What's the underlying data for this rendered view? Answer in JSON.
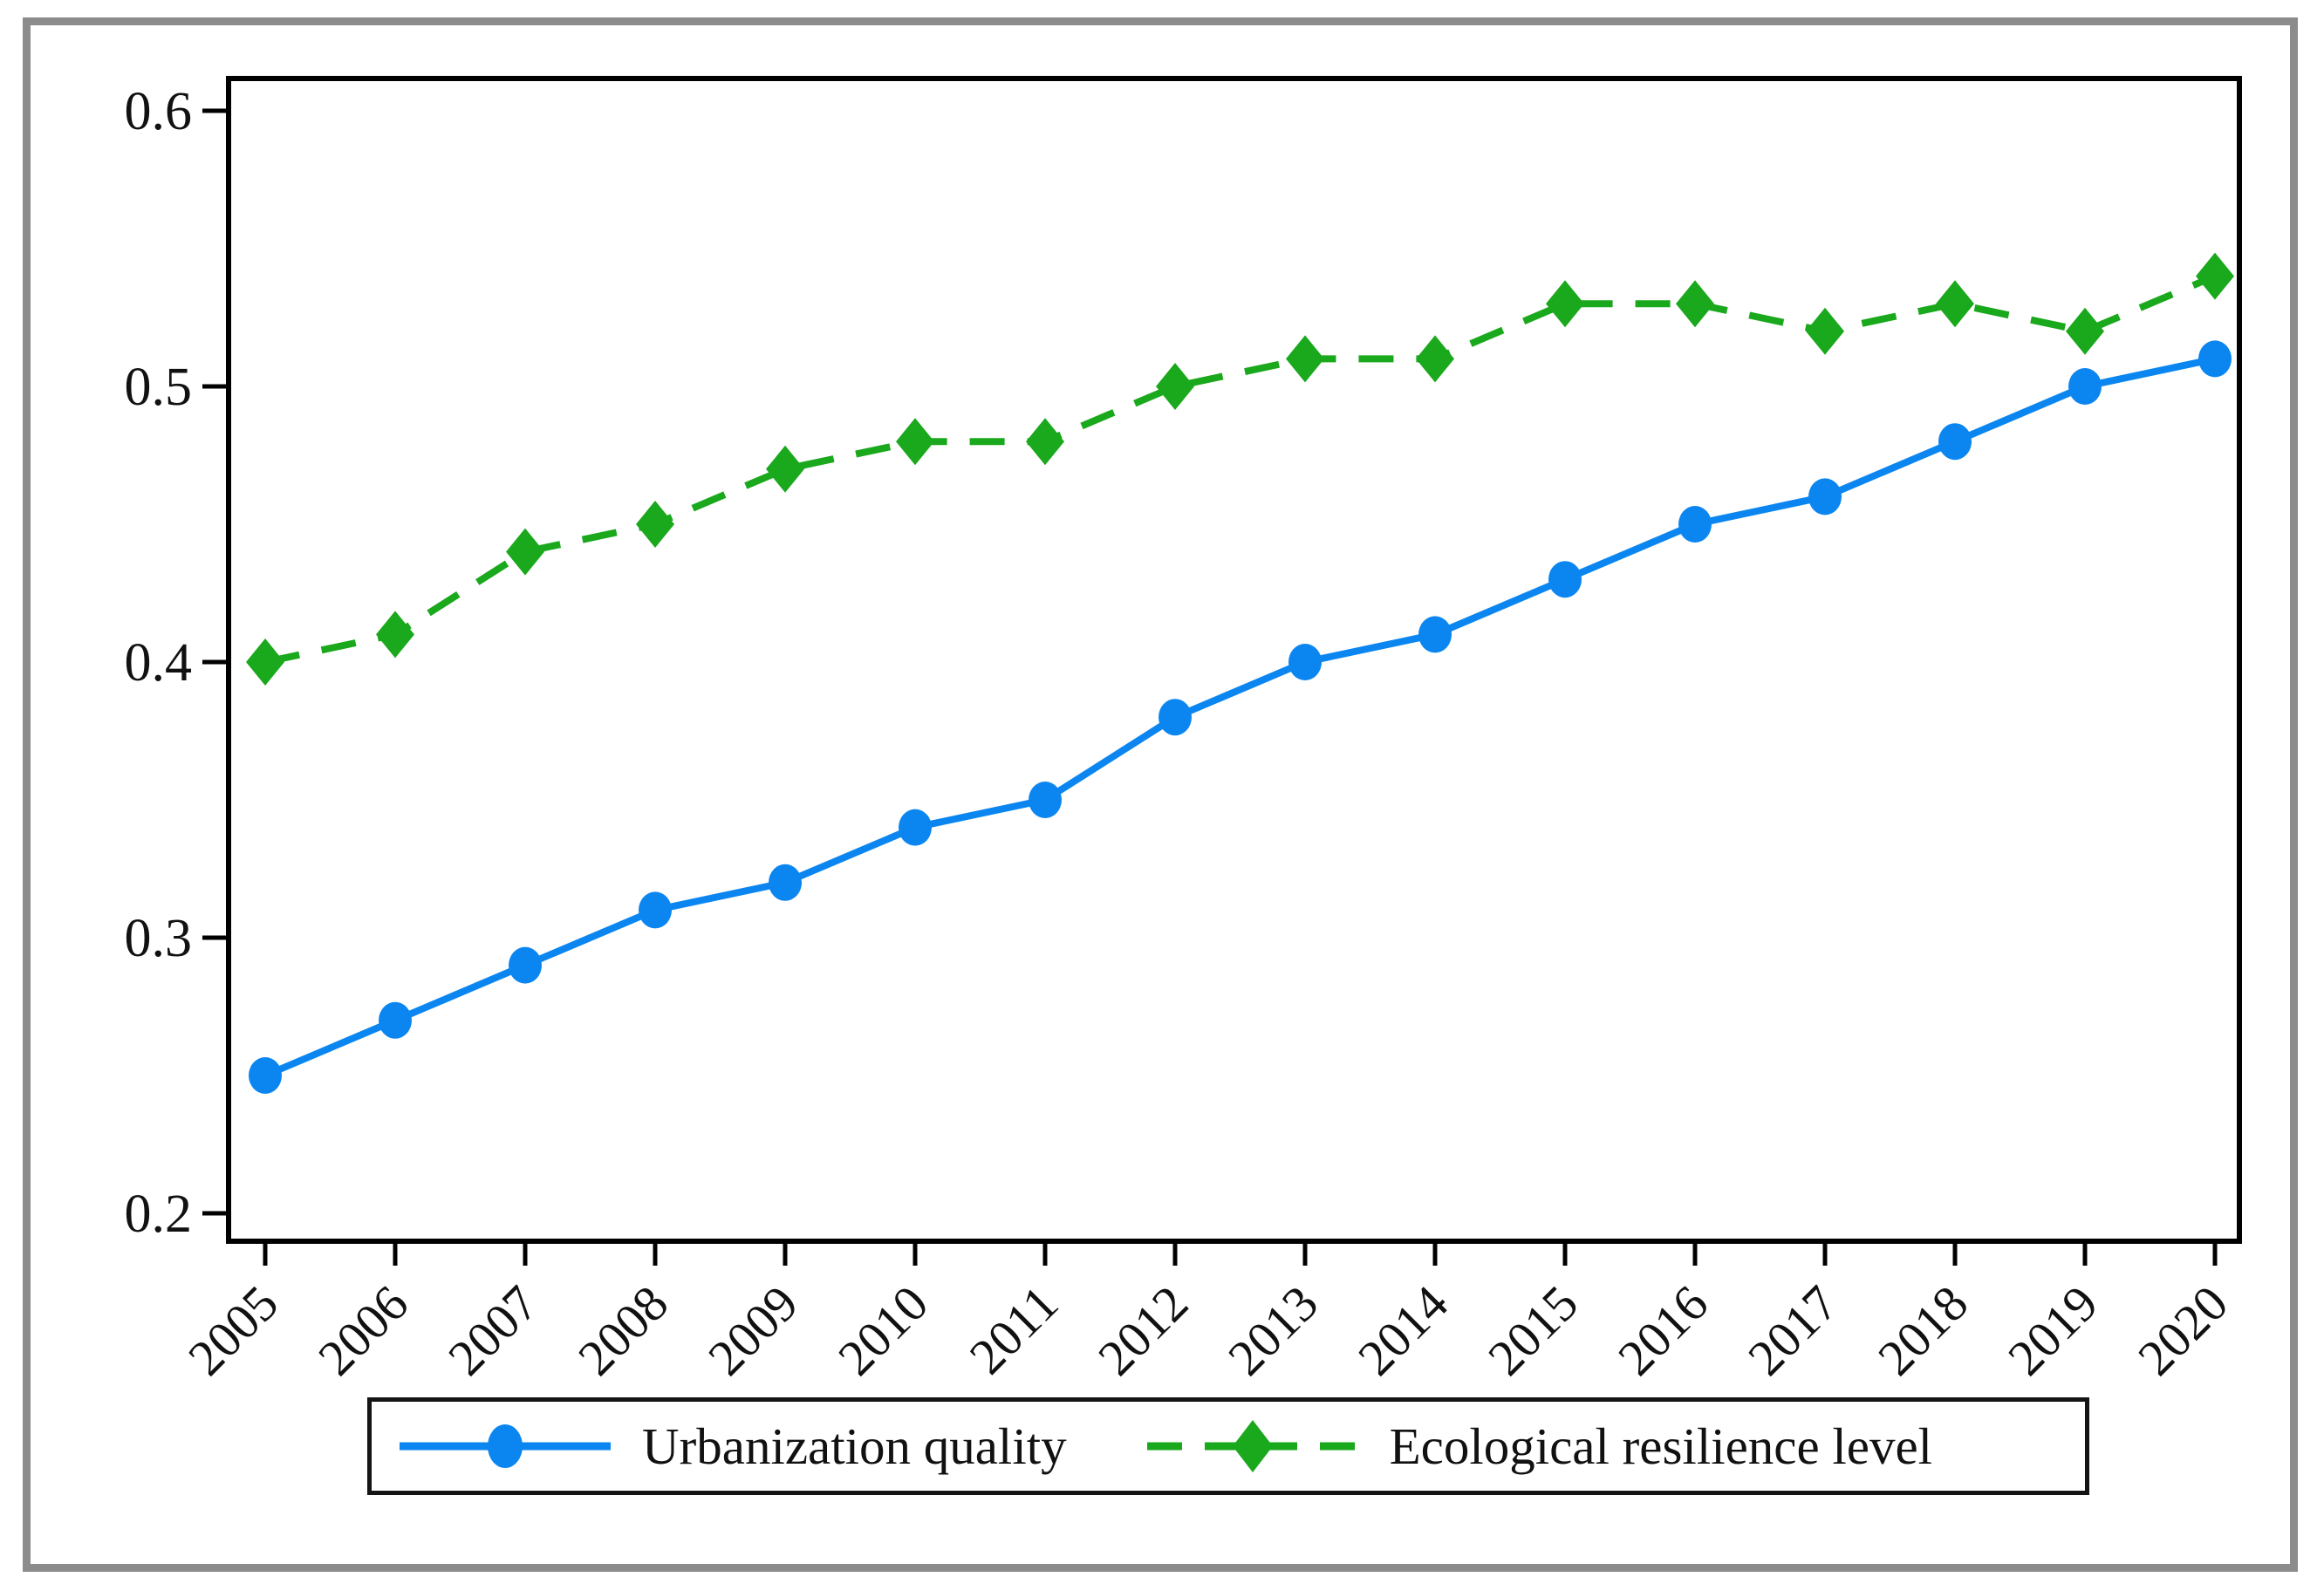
{
  "chart_data": {
    "type": "line",
    "title": "",
    "xlabel": "",
    "ylabel": "",
    "grid": false,
    "legend_position": "bottom",
    "categories": [
      "2005",
      "2006",
      "2007",
      "2008",
      "2009",
      "2010",
      "2011",
      "2012",
      "2013",
      "2014",
      "2015",
      "2016",
      "2017",
      "2018",
      "2019",
      "2020"
    ],
    "y_ticks": [
      "0.2",
      "0.3",
      "0.4",
      "0.5",
      "0.6"
    ],
    "ylim": [
      0.19,
      0.612
    ],
    "series": [
      {
        "name": "Urbanization quality",
        "color": "#0b86f0",
        "line_style": "solid",
        "marker": "circle",
        "values": [
          0.25,
          0.27,
          0.29,
          0.31,
          0.32,
          0.34,
          0.35,
          0.38,
          0.4,
          0.41,
          0.43,
          0.45,
          0.46,
          0.48,
          0.5,
          0.51
        ]
      },
      {
        "name": "Ecological resilience level",
        "color": "#1aa81c",
        "line_style": "dashed",
        "marker": "diamond",
        "values": [
          0.4,
          0.41,
          0.44,
          0.45,
          0.47,
          0.48,
          0.48,
          0.5,
          0.51,
          0.51,
          0.53,
          0.53,
          0.52,
          0.53,
          0.52,
          0.54
        ]
      }
    ],
    "axis_color": "#000000",
    "frame_color": "#8c8c8c"
  }
}
